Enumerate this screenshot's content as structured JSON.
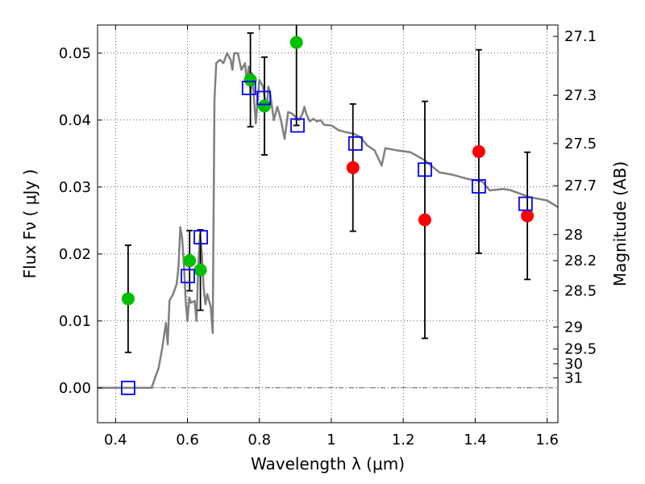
{
  "chart_data": {
    "type": "scatter",
    "xlabel": "Wavelength  λ (μm)",
    "ylabel": "Flux  Fν  ( μJy )",
    "ylabel_right": "Magnitude (AB)",
    "xlim": [
      0.35,
      1.63
    ],
    "ylim": [
      -0.0052,
      0.0542
    ],
    "grid": true,
    "x_ticks": [
      0.4,
      0.6,
      0.8,
      1.0,
      1.2,
      1.4,
      1.6
    ],
    "x_tick_labels": [
      "0.4",
      "0.6",
      "0.8",
      "1",
      "1.2",
      "1.4",
      "1.6"
    ],
    "y_ticks": [
      0.0,
      0.01,
      0.02,
      0.03,
      0.04,
      0.05
    ],
    "y_tick_labels": [
      "0.00",
      "0.01",
      "0.02",
      "0.03",
      "0.04",
      "0.05"
    ],
    "right_ticks": [
      {
        "label": "27.1",
        "flux": 0.0525
      },
      {
        "label": "27.3",
        "flux": 0.0437
      },
      {
        "label": "27.5",
        "flux": 0.0365
      },
      {
        "label": "27.7",
        "flux": 0.0302
      },
      {
        "label": "28",
        "flux": 0.0229
      },
      {
        "label": "28.2",
        "flux": 0.019
      },
      {
        "label": "28.5",
        "flux": 0.0145
      },
      {
        "label": "29",
        "flux": 0.0091
      },
      {
        "label": "29.5",
        "flux": 0.0058
      },
      {
        "label": "30",
        "flux": 0.0036
      },
      {
        "label": "31",
        "flux": 0.0015
      }
    ],
    "series": [
      {
        "name": "model SED",
        "type": "line",
        "color": "#808080",
        "points": [
          [
            0.35,
            0.0
          ],
          [
            0.49,
            0.0
          ],
          [
            0.5,
            0.0
          ],
          [
            0.52,
            0.003
          ],
          [
            0.53,
            0.006
          ],
          [
            0.54,
            0.0097
          ],
          [
            0.545,
            0.0065
          ],
          [
            0.55,
            0.013
          ],
          [
            0.56,
            0.014
          ],
          [
            0.57,
            0.0155
          ],
          [
            0.575,
            0.018
          ],
          [
            0.58,
            0.024
          ],
          [
            0.585,
            0.0225
          ],
          [
            0.59,
            0.0185
          ],
          [
            0.595,
            0.013
          ],
          [
            0.6,
            0.01
          ],
          [
            0.605,
            0.0135
          ],
          [
            0.61,
            0.0127
          ],
          [
            0.62,
            0.013
          ],
          [
            0.625,
            0.01
          ],
          [
            0.63,
            0.018
          ],
          [
            0.635,
            0.023
          ],
          [
            0.64,
            0.02
          ],
          [
            0.645,
            0.015
          ],
          [
            0.65,
            0.0125
          ],
          [
            0.655,
            0.014
          ],
          [
            0.66,
            0.013
          ],
          [
            0.665,
            0.012
          ],
          [
            0.67,
            0.0082
          ],
          [
            0.675,
            0.043
          ],
          [
            0.68,
            0.0485
          ],
          [
            0.69,
            0.049
          ],
          [
            0.7,
            0.0485
          ],
          [
            0.71,
            0.05
          ],
          [
            0.72,
            0.049
          ],
          [
            0.725,
            0.0475
          ],
          [
            0.73,
            0.05
          ],
          [
            0.74,
            0.05
          ],
          [
            0.75,
            0.0475
          ],
          [
            0.76,
            0.0485
          ],
          [
            0.765,
            0.0455
          ],
          [
            0.77,
            0.048
          ],
          [
            0.775,
            0.044
          ],
          [
            0.78,
            0.047
          ],
          [
            0.79,
            0.0395
          ],
          [
            0.8,
            0.046
          ],
          [
            0.81,
            0.045
          ],
          [
            0.82,
            0.0415
          ],
          [
            0.825,
            0.045
          ],
          [
            0.83,
            0.044
          ],
          [
            0.84,
            0.04
          ],
          [
            0.85,
            0.042
          ],
          [
            0.86,
            0.04
          ],
          [
            0.87,
            0.0372
          ],
          [
            0.88,
            0.0412
          ],
          [
            0.89,
            0.041
          ],
          [
            0.9,
            0.0405
          ],
          [
            0.91,
            0.04
          ],
          [
            0.92,
            0.041
          ],
          [
            0.925,
            0.042
          ],
          [
            0.93,
            0.041
          ],
          [
            0.94,
            0.0398
          ],
          [
            0.95,
            0.0402
          ],
          [
            0.96,
            0.0398
          ],
          [
            0.97,
            0.04
          ],
          [
            0.98,
            0.0393
          ],
          [
            1.0,
            0.0392
          ],
          [
            1.02,
            0.0385
          ],
          [
            1.04,
            0.0382
          ],
          [
            1.06,
            0.038
          ],
          [
            1.08,
            0.0375
          ],
          [
            1.1,
            0.0362
          ],
          [
            1.12,
            0.0355
          ],
          [
            1.14,
            0.0332
          ],
          [
            1.15,
            0.0358
          ],
          [
            1.18,
            0.0355
          ],
          [
            1.22,
            0.0352
          ],
          [
            1.26,
            0.034
          ],
          [
            1.3,
            0.0322
          ],
          [
            1.34,
            0.0318
          ],
          [
            1.38,
            0.0312
          ],
          [
            1.42,
            0.0308
          ],
          [
            1.44,
            0.0295
          ],
          [
            1.48,
            0.0297
          ],
          [
            1.5,
            0.0295
          ],
          [
            1.55,
            0.0285
          ],
          [
            1.6,
            0.028
          ],
          [
            1.63,
            0.027
          ]
        ]
      },
      {
        "name": "observed (green)",
        "type": "scatter",
        "color": "#00bf00",
        "points": [
          {
            "x": 0.435,
            "y": 0.0133,
            "err": 0.008
          },
          {
            "x": 0.606,
            "y": 0.019,
            "err": 0.0045
          },
          {
            "x": 0.636,
            "y": 0.0176,
            "err": 0.006
          },
          {
            "x": 0.775,
            "y": 0.046,
            "err": 0.007
          },
          {
            "x": 0.814,
            "y": 0.0421,
            "err": 0.0073
          },
          {
            "x": 0.903,
            "y": 0.0516,
            "err": 0.0124
          }
        ]
      },
      {
        "name": "observed (red)",
        "type": "scatter",
        "color": "#ff0000",
        "points": [
          {
            "x": 1.06,
            "y": 0.0329,
            "err": 0.0095
          },
          {
            "x": 1.26,
            "y": 0.0251,
            "err": 0.0177
          },
          {
            "x": 1.41,
            "y": 0.0353,
            "err": 0.0152
          },
          {
            "x": 1.545,
            "y": 0.0257,
            "err": 0.0095
          }
        ]
      },
      {
        "name": "model photometry",
        "type": "scatter",
        "marker": "square",
        "color": "#0000ff",
        "points": [
          {
            "x": 0.435,
            "y": 0.0
          },
          {
            "x": 0.601,
            "y": 0.0167
          },
          {
            "x": 0.637,
            "y": 0.0225
          },
          {
            "x": 0.771,
            "y": 0.0448
          },
          {
            "x": 0.812,
            "y": 0.0433
          },
          {
            "x": 0.906,
            "y": 0.0392
          },
          {
            "x": 1.067,
            "y": 0.0365
          },
          {
            "x": 1.26,
            "y": 0.0326
          },
          {
            "x": 1.41,
            "y": 0.0301
          },
          {
            "x": 1.54,
            "y": 0.0275
          }
        ]
      }
    ]
  }
}
